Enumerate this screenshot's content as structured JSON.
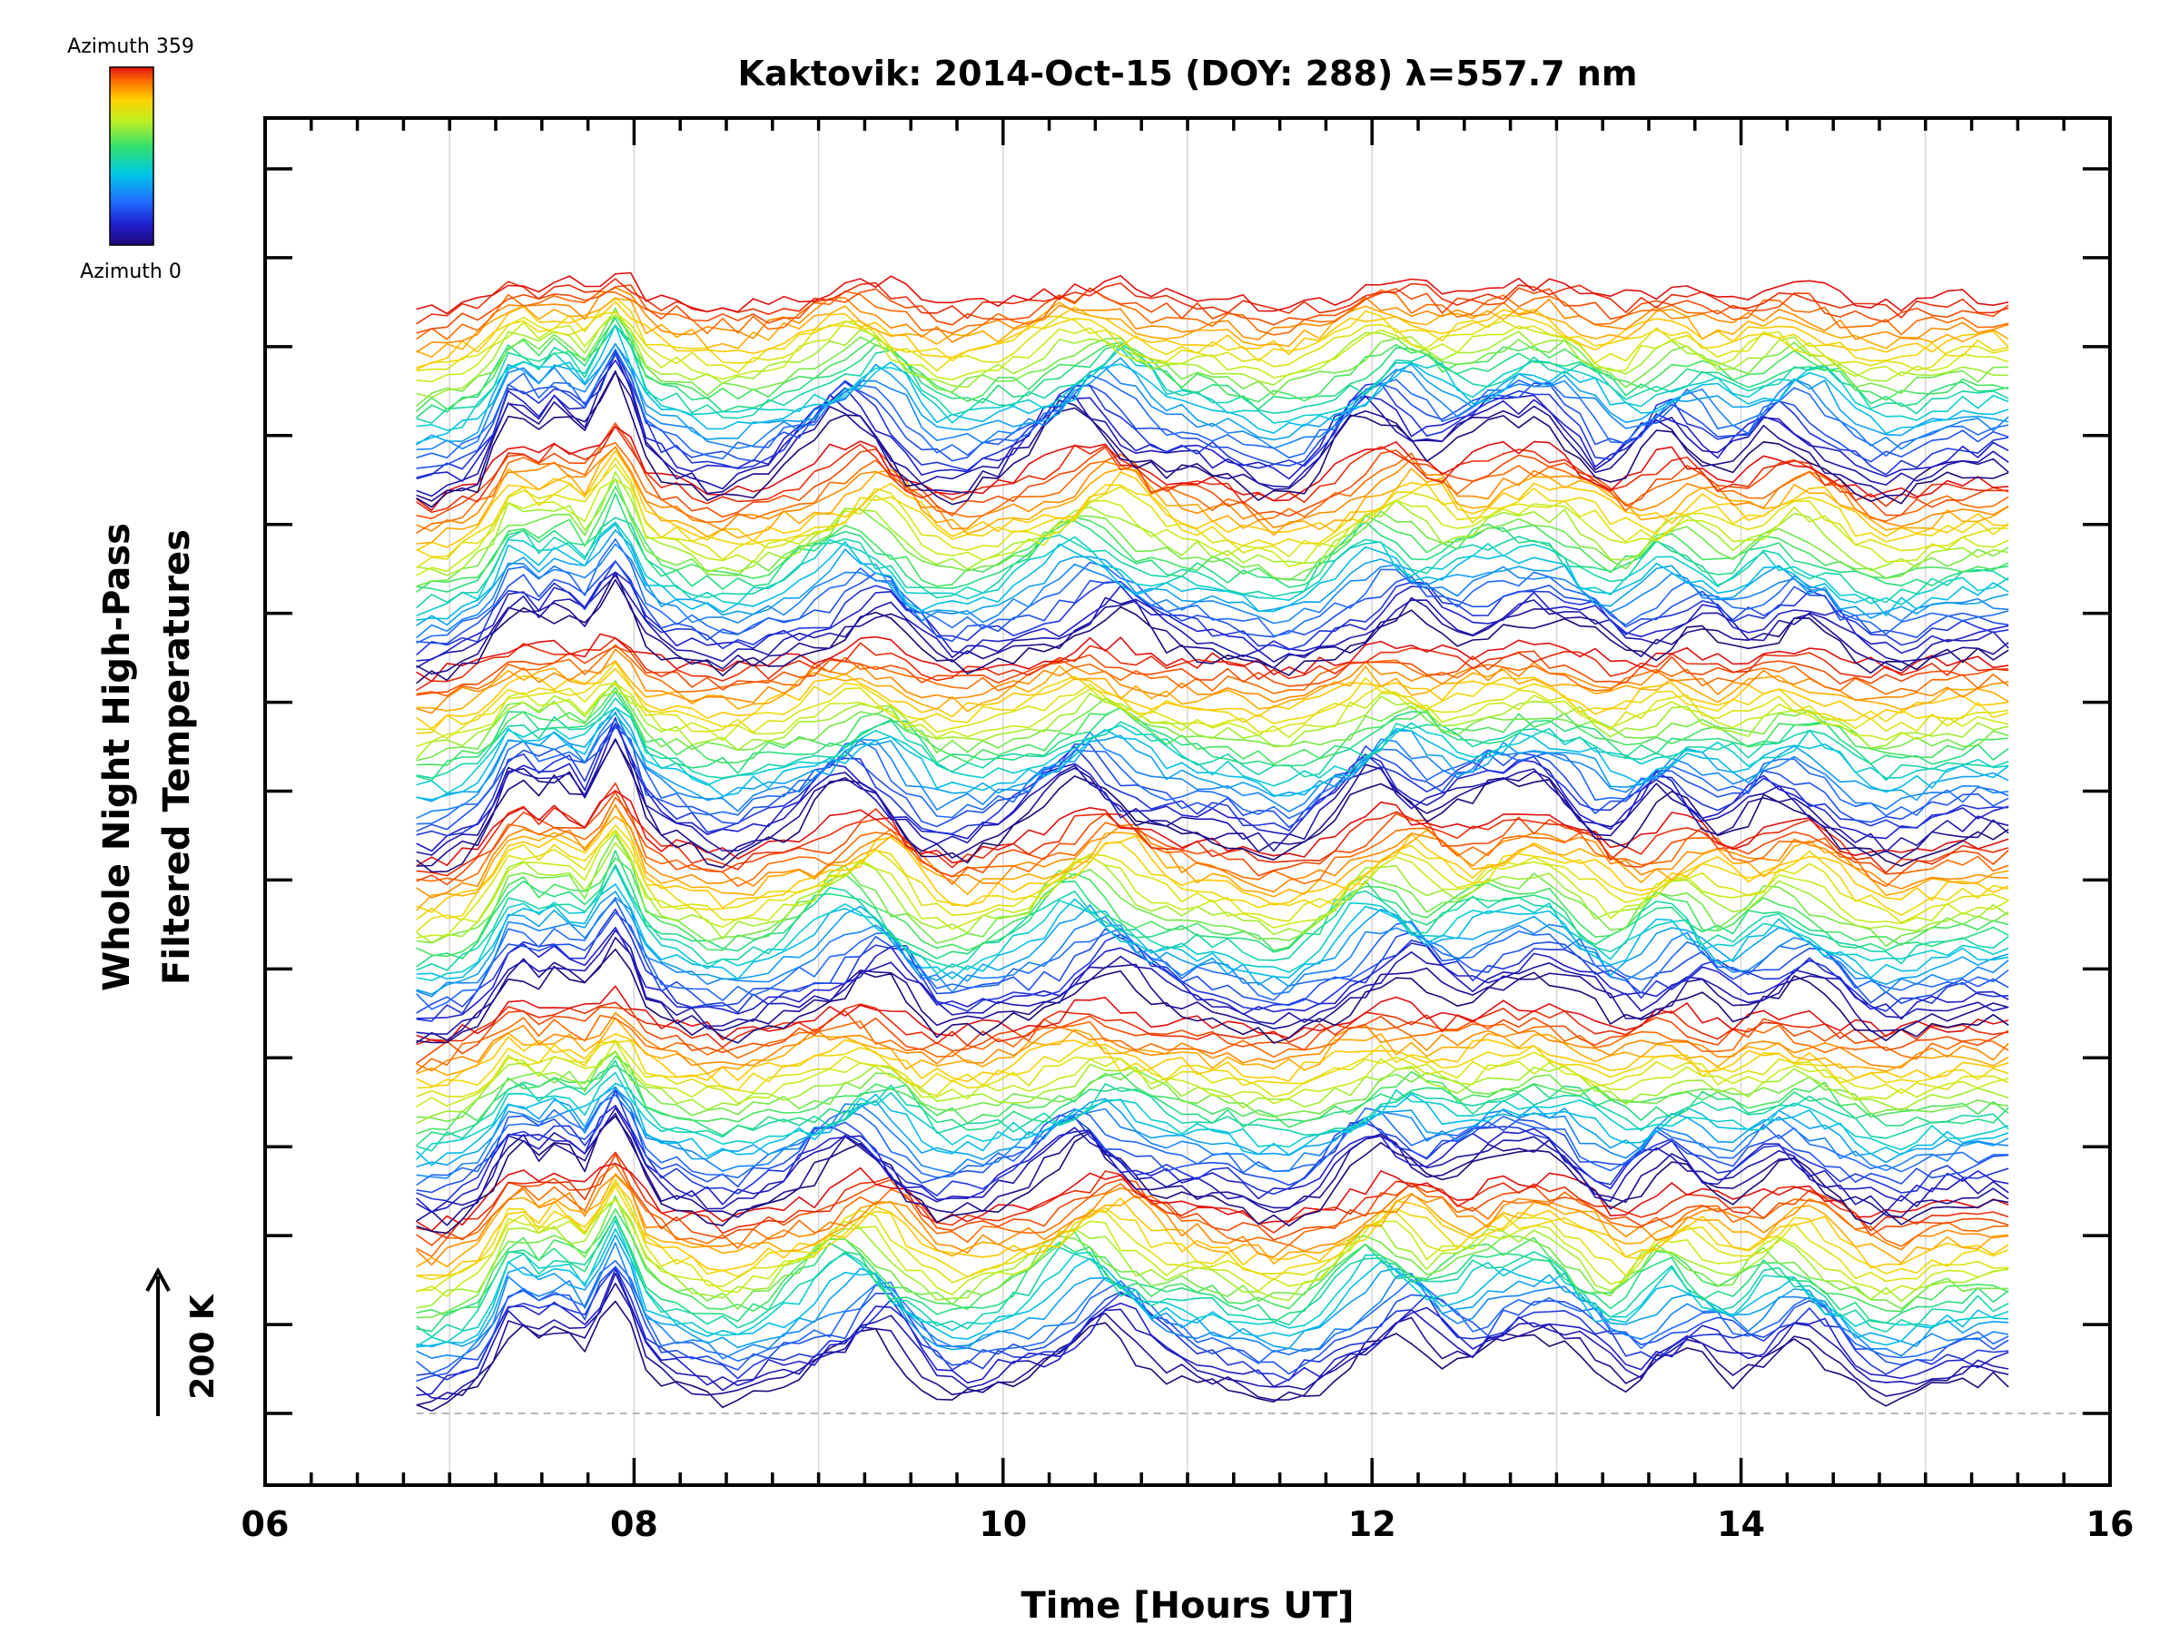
{
  "chart_data": {
    "type": "line",
    "title": "Kaktovik: 2014-Oct-15 (DOY: 288) λ=557.7 nm",
    "xlabel": "Time [Hours UT]",
    "ylabel_line1": "Whole Night High-Pass",
    "ylabel_line2": "Filtered Temperatures",
    "xlim": [
      6,
      16
    ],
    "x_tick_labels": [
      "06",
      "08",
      "10",
      "12",
      "14",
      "16"
    ],
    "x_tick_values": [
      6,
      8,
      10,
      12,
      14,
      16
    ],
    "x_minor_step": 0.25,
    "y_tick_count": 15,
    "grid": true,
    "colorbar": {
      "label_top": "Azimuth 359",
      "label_bottom": "Azimuth 0",
      "colors": [
        "#1e0a78",
        "#2020d0",
        "#2070ff",
        "#00c8e6",
        "#30e070",
        "#c0f020",
        "#ffd000",
        "#ff7000",
        "#e01010"
      ]
    },
    "scale_bar_label": "200 K",
    "series_description": "Stacked high-pass filtered temperature traces, one per azimuth (0–359), each offset vertically and colored by azimuth",
    "data_start_hour": 6.82,
    "data_end_hour": 15.45,
    "stack_groups": 6,
    "traces_per_group": 26,
    "common_features": {
      "peak_hours": [
        7.35,
        7.6,
        7.9,
        9.25,
        10.5,
        12.1,
        12.7,
        13.05,
        13.7,
        14.25
      ],
      "trough_hours": [
        7.0,
        8.5,
        9.7,
        11.5,
        13.3,
        13.9,
        14.8
      ]
    }
  }
}
